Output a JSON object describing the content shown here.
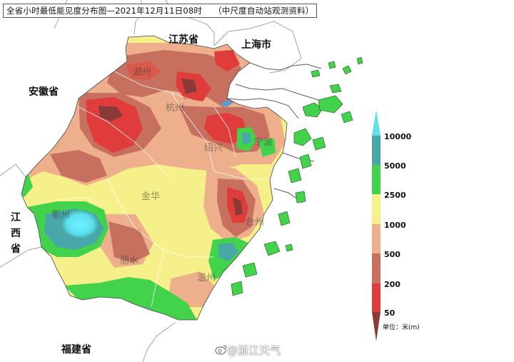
{
  "title": {
    "main": "全省小时最低能见度分布图—2021年12月11日08时",
    "note": "（中尺度自动站观测资料）"
  },
  "regions": {
    "jiangsu": "江苏省",
    "shanghai": "上海市",
    "anhui": "安徽省",
    "jiangxi_chars": [
      "江",
      "西",
      "省"
    ],
    "fujian": "福建省"
  },
  "cities": {
    "huzhou": "湖州",
    "hangzhou": "杭州",
    "shaoxing": "绍兴",
    "ningbo": "宁波",
    "jinhua": "金华",
    "quzhou": "衢州",
    "taizhou": "台州",
    "lishui": "丽水",
    "wenzhou": "温州"
  },
  "legend": {
    "colors": {
      "below50": "#8b3a3a",
      "c50_200": "#e03c3c",
      "c200_500": "#c8705f",
      "c500_1000": "#eeb08c",
      "c1000_2500": "#f5f089",
      "c2500_5000": "#43d24b",
      "c5000_10000": "#48a8a8",
      "above10000": "#5ce0ef"
    },
    "labels": [
      "10000",
      "5000",
      "2500",
      "1000",
      "500",
      "200",
      "50"
    ],
    "unit": "单位：米(m)"
  },
  "watermark": {
    "text": "@浙江天气",
    "icon": "weibo-icon"
  }
}
